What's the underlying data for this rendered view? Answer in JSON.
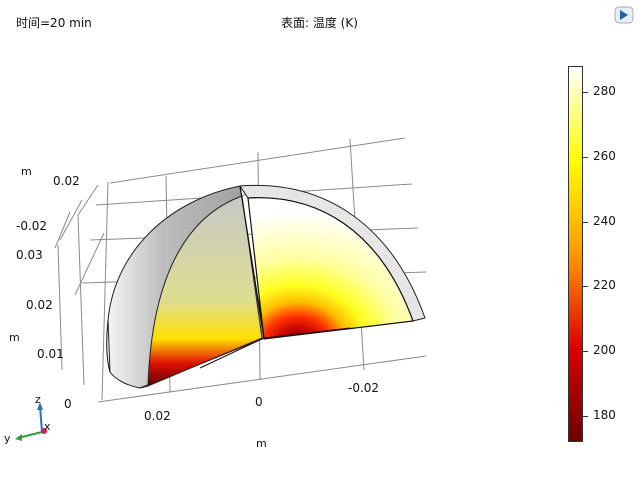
{
  "header": {
    "time_label": "时间=20 min",
    "plot_title": "表面: 温度 (K)"
  },
  "axes": {
    "z_unit": "m",
    "y_unit_left": "m",
    "x_unit_bottom": "m",
    "ticks_top_left": [
      "0.02",
      "-0.02"
    ],
    "ticks_left": [
      "0.03",
      "0.02",
      "0.01",
      "0"
    ],
    "ticks_bottom": [
      "0.02",
      "0",
      "-0.02"
    ]
  },
  "colorbar": {
    "min": 172,
    "max": 288,
    "labels": [
      "280",
      "260",
      "240",
      "220",
      "200",
      "180"
    ],
    "colors": [
      "#ffffff",
      "#ffff00",
      "#ff9900",
      "#dd0000",
      "#700000"
    ]
  },
  "triad": {
    "z": "z",
    "y": "y",
    "x": "x"
  },
  "icons": {
    "logo": "comsol-logo-icon"
  }
}
